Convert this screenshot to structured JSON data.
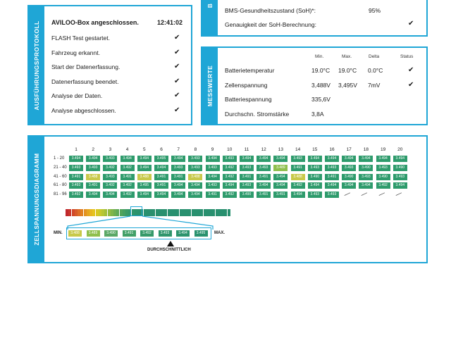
{
  "panels": {
    "protocol": {
      "sidebar": "AUSFÜHRUNGSPROTOKOLL",
      "title": "AVILOO-Box angeschlossen.",
      "time": "12:41:02",
      "items": [
        "FLASH Test gestartet.",
        "Fahrzeug erkannt.",
        "Start der Datenerfassung.",
        "Datenerfassung beendet.",
        "Analyse der Daten.",
        "Analyse abgeschlossen."
      ]
    },
    "top_right": {
      "sidebar": "B",
      "rows": [
        {
          "label": "BMS-Gesundheitszustand (SoH)*:",
          "value": "95%"
        },
        {
          "label": "Genauigkeit der SoH-Berechnung:",
          "value": ""
        }
      ]
    },
    "messwerte": {
      "sidebar": "MESSWERTE",
      "headers": {
        "min": "Min.",
        "max": "Max.",
        "delta": "Delta",
        "status": "Status"
      },
      "rows": [
        {
          "label": "Batterietemperatur",
          "min": "19.0°C",
          "max": "19.0°C",
          "delta": "0.0°C",
          "check": true
        },
        {
          "label": "Zellenspannung",
          "min": "3,488V",
          "max": "3,495V",
          "delta": "7mV",
          "check": true
        },
        {
          "label": "Batteriespannung",
          "min": "335,6V",
          "max": "",
          "delta": "",
          "check": false
        },
        {
          "label": "Durchschn. Stromstärke",
          "min": "3,8A",
          "max": "",
          "delta": "",
          "check": false
        }
      ]
    },
    "cells": {
      "sidebar": "ZELLSPANNUNGSDIAGRAMM",
      "columns": [
        "1",
        "2",
        "3",
        "4",
        "5",
        "6",
        "7",
        "8",
        "9",
        "10",
        "11",
        "12",
        "13",
        "14",
        "15",
        "16",
        "17",
        "18",
        "19",
        "20"
      ],
      "row_labels": [
        "1 - 20",
        "21 - 40",
        "41 - 60",
        "61 - 80",
        "81 - 96"
      ],
      "grid": [
        [
          "3.494",
          "3.494",
          "3.493",
          "3.494",
          "3.494",
          "3.495",
          "3.494",
          "3.493",
          "3.494",
          "3.493",
          "3.494",
          "3.494",
          "3.494",
          "3.493",
          "3.494",
          "3.494",
          "3.494",
          "3.494",
          "3.494",
          "3.494"
        ],
        [
          "3.493",
          "3.493",
          "3.492",
          "3.492",
          "3.494",
          "3.494",
          "3.493",
          "3.493",
          "3.493",
          "3.492",
          "3.493",
          "3.493",
          "3.489",
          "3.491",
          "3.493",
          "3.493",
          "3.493",
          "3.490",
          "3.493",
          "3.490"
        ],
        [
          "3.491",
          "3.488",
          "3.493",
          "3.491",
          "3.488",
          "3.491",
          "3.491",
          "3.488",
          "3.494",
          "3.492",
          "3.491",
          "3.491",
          "3.494",
          "3.488",
          "3.490",
          "3.491",
          "3.490",
          "3.493",
          "3.490",
          "3.493"
        ],
        [
          "3.493",
          "3.491",
          "3.492",
          "3.492",
          "3.495",
          "3.491",
          "3.494",
          "3.494",
          "3.493",
          "3.494",
          "3.493",
          "3.494",
          "3.494",
          "3.492",
          "3.494",
          "3.494",
          "3.494",
          "3.494",
          "3.492",
          "3.494"
        ],
        [
          "3.492",
          "3.494",
          "3.494",
          "3.492",
          "3.494",
          "3.494",
          "3.494",
          "3.494",
          "3.491",
          "3.492",
          "3.490",
          "3.491",
          "3.491",
          "3.494",
          "3.493",
          "3.493",
          "",
          "",
          "",
          ""
        ]
      ],
      "zoom_min": "MIN.",
      "zoom_max": "MAX.",
      "zoom_values": [
        "3.488",
        "3.489",
        "3.490",
        "3.491",
        "3.492",
        "3.493",
        "3.494",
        "3.495"
      ],
      "average_label": "DURCHSCHNITTLICH",
      "colors": {
        "high": "#2e9b6c",
        "mid": "#8fbf4d",
        "low": "#c8c94a"
      }
    }
  }
}
